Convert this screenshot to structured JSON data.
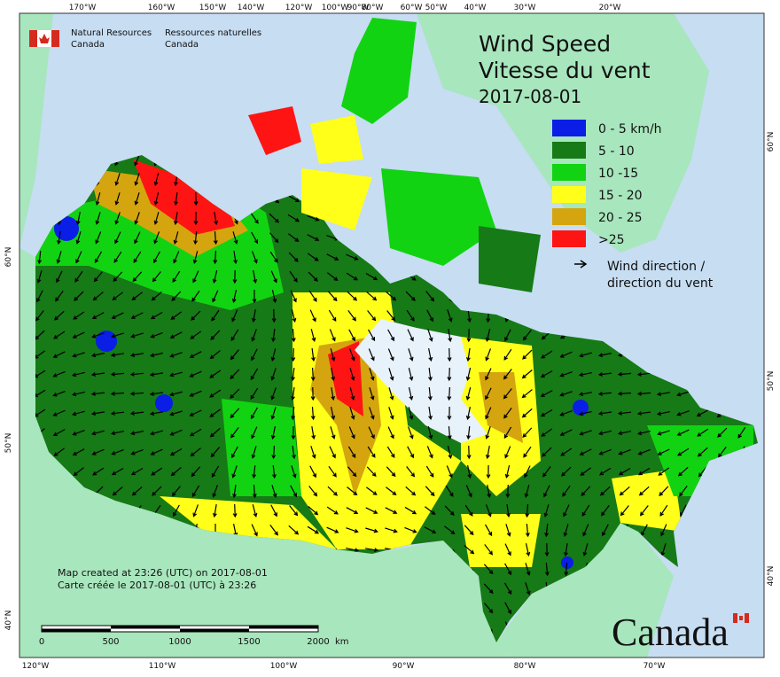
{
  "header": {
    "agency_en": [
      "Natural Resources",
      "Canada"
    ],
    "agency_fr": [
      "Ressources naturelles",
      "Canada"
    ],
    "title": [
      "Wind Speed",
      "Vitesse du vent"
    ],
    "date": "2017-08-01"
  },
  "legend": {
    "items": [
      {
        "label": "0 - 5 km/h",
        "color": "#0a1ee6"
      },
      {
        "label": "5 - 10",
        "color": "#167a16"
      },
      {
        "label": "10 -15",
        "color": "#12d312"
      },
      {
        "label": "15 - 20",
        "color": "#ffff19"
      },
      {
        "label": "20 - 25",
        "color": "#d4a50f"
      },
      {
        "label": ">25",
        "color": "#ff1414"
      }
    ],
    "direction": [
      "Wind direction /",
      "direction du vent"
    ]
  },
  "graticule": {
    "top": [
      "170°W",
      "160°W",
      "150°W",
      "140°W",
      "120°W",
      "100°W",
      "90°W",
      "80°W",
      "60°W",
      "50°W",
      "40°W",
      "30°W",
      "20°W"
    ],
    "bottom": [
      "120°W",
      "110°W",
      "100°W",
      "90°W",
      "80°W",
      "70°W"
    ],
    "left": [
      "60°N",
      "50°N",
      "40°N"
    ],
    "right": [
      "60°N",
      "50°N",
      "40°N"
    ]
  },
  "footer": {
    "created": [
      "Map created at 23:26 (UTC) on 2017-08-01",
      "Carte créée le 2017-08-01 (UTC) à 23:26"
    ],
    "scale": [
      "0",
      "500",
      "1000",
      "1500",
      "2000"
    ],
    "scale_unit": "km",
    "wordmark": "Canada"
  }
}
